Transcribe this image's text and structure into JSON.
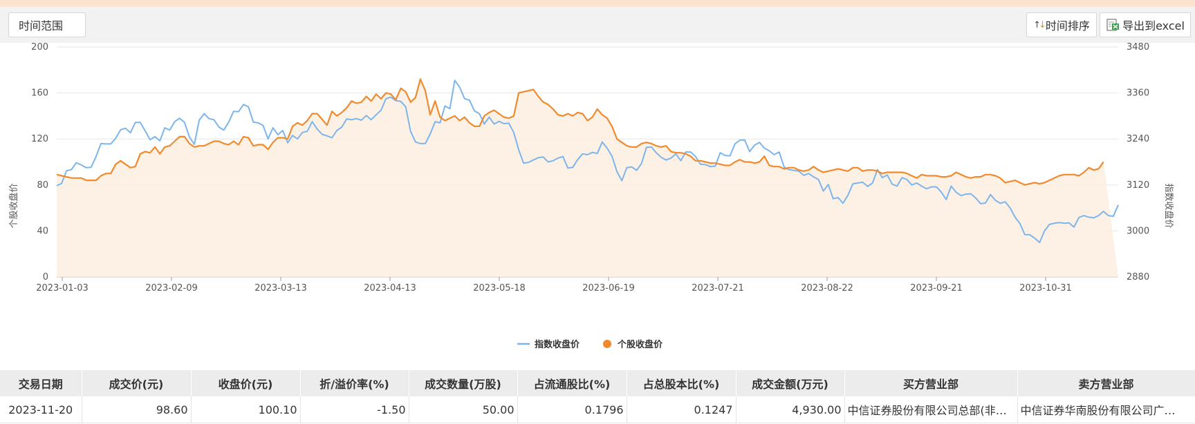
{
  "toolbar": {
    "time_range_label": "时间范围",
    "sort_label": "时间排序",
    "export_label": "导出到excel",
    "sort_icon": "sort-updown-icon",
    "export_icon": "excel-export-icon"
  },
  "chart_data": {
    "type": "line",
    "x_labels": [
      "2023-01-03",
      "2023-02-09",
      "2023-03-13",
      "2023-04-13",
      "2023-05-18",
      "2023-06-19",
      "2023-07-21",
      "2023-08-22",
      "2023-09-21",
      "2023-10-31"
    ],
    "ylabel_left": "个股收盘价",
    "ylabel_right": "指数收盘价",
    "ylim_left": [
      0,
      200
    ],
    "ylim_right": [
      2880,
      3480
    ],
    "yticks_left": [
      "0",
      "40",
      "80",
      "120",
      "160",
      "200"
    ],
    "yticks_right": [
      "2880",
      "3000",
      "3120",
      "3240",
      "3360",
      "3480"
    ],
    "grid": true,
    "legend_position": "bottom",
    "series": [
      {
        "name": "指数收盘价",
        "axis": "right",
        "color": "#7cb5ec",
        "values": [
          3118,
          3124,
          3157,
          3160,
          3178,
          3172,
          3165,
          3166,
          3194,
          3228,
          3227,
          3227,
          3242,
          3264,
          3268,
          3256,
          3283,
          3283,
          3261,
          3238,
          3246,
          3235,
          3269,
          3263,
          3285,
          3294,
          3283,
          3245,
          3226,
          3289,
          3306,
          3293,
          3290,
          3271,
          3263,
          3284,
          3312,
          3311,
          3330,
          3324,
          3284,
          3282,
          3275,
          3240,
          3269,
          3251,
          3262,
          3230,
          3249,
          3240,
          3257,
          3260,
          3285,
          3266,
          3252,
          3248,
          3243,
          3262,
          3271,
          3292,
          3290,
          3293,
          3289,
          3301,
          3290,
          3303,
          3315,
          3345,
          3349,
          3340,
          3338,
          3324,
          3260,
          3232,
          3228,
          3228,
          3253,
          3285,
          3282,
          3326,
          3319,
          3393,
          3375,
          3345,
          3341,
          3313,
          3306,
          3279,
          3297,
          3279,
          3286,
          3280,
          3281,
          3257,
          3212,
          3177,
          3179,
          3185,
          3191,
          3193,
          3180,
          3183,
          3190,
          3194,
          3164,
          3166,
          3186,
          3201,
          3199,
          3205,
          3202,
          3232,
          3216,
          3195,
          3155,
          3131,
          3165,
          3167,
          3158,
          3176,
          3218,
          3219,
          3204,
          3192,
          3185,
          3190,
          3201,
          3183,
          3206,
          3206,
          3194,
          3174,
          3173,
          3168,
          3169,
          3204,
          3197,
          3196,
          3227,
          3237,
          3237,
          3207,
          3224,
          3231,
          3216,
          3209,
          3199,
          3206,
          3167,
          3160,
          3158,
          3156,
          3145,
          3150,
          3141,
          3134,
          3104,
          3121,
          3084,
          3087,
          3072,
          3093,
          3123,
          3125,
          3127,
          3116,
          3125,
          3160,
          3139,
          3146,
          3122,
          3117,
          3139,
          3134,
          3120,
          3125,
          3117,
          3110,
          3115,
          3115,
          3101,
          3082,
          3117,
          3101,
          3092,
          3096,
          3097,
          3086,
          3071,
          3073,
          3095,
          3080,
          3072,
          3076,
          3060,
          3036,
          3019,
          2990,
          2990,
          2981,
          2970,
          3000,
          3017,
          3020,
          3022,
          3020,
          3021,
          3010,
          3035,
          3040,
          3036,
          3034,
          3040,
          3051,
          3040,
          3038,
          3068
        ]
      },
      {
        "name": "个股收盘价",
        "axis": "left",
        "color": "#f08a2c",
        "values": [
          89,
          88,
          87,
          86,
          86,
          86,
          84,
          84,
          84,
          88,
          90,
          90,
          98,
          101,
          98,
          95,
          96,
          107,
          109,
          108,
          113,
          107,
          113,
          114,
          118,
          122,
          122,
          116,
          113,
          114,
          114,
          116,
          118,
          118,
          116,
          115,
          118,
          115,
          122,
          121,
          114,
          115,
          115,
          111,
          117,
          121,
          121,
          120,
          131,
          134,
          132,
          136,
          142,
          142,
          137,
          132,
          144,
          140,
          143,
          147,
          153,
          151,
          152,
          157,
          153,
          159,
          155,
          160,
          159,
          154,
          164,
          161,
          152,
          156,
          172,
          162,
          141,
          153,
          139,
          136,
          138,
          140,
          136,
          139,
          134,
          131,
          131,
          140,
          143,
          145,
          142,
          139,
          138,
          140,
          160,
          161,
          162,
          163,
          157,
          152,
          150,
          146,
          141,
          140,
          142,
          140,
          143,
          142,
          136,
          139,
          146,
          141,
          138,
          131,
          120,
          117,
          114,
          113,
          113,
          116,
          117,
          116,
          114,
          113,
          114,
          109,
          108,
          108,
          107,
          105,
          101,
          101,
          100,
          99,
          99,
          98,
          97,
          97,
          100,
          102,
          100,
          100,
          99,
          100,
          105,
          97,
          96,
          96,
          94,
          95,
          95,
          93,
          92,
          93,
          96,
          93,
          91,
          92,
          93,
          94,
          93,
          92,
          95,
          95,
          92,
          93,
          93,
          92,
          90,
          91,
          91,
          91,
          91,
          90,
          88,
          86,
          89,
          88,
          88,
          88,
          87,
          87,
          88,
          91,
          89,
          87,
          86,
          87,
          87,
          89,
          89,
          88,
          86,
          82,
          83,
          84,
          82,
          80,
          81,
          82,
          81,
          82,
          84,
          86,
          88,
          89,
          89,
          89,
          88,
          91,
          95,
          93,
          94,
          100
        ]
      }
    ]
  },
  "table": {
    "headers": [
      "交易日期",
      "成交价(元)",
      "收盘价(元)",
      "折/溢价率(%)",
      "成交数量(万股)",
      "占流通股比(%)",
      "占总股本比(%)",
      "成交金额(万元)",
      "买方营业部",
      "卖方营业部"
    ],
    "rows": [
      [
        "2023-11-20",
        "98.60",
        "100.10",
        "-1.50",
        "50.00",
        "0.1796",
        "0.1247",
        "4,930.00",
        "中信证券股份有限公司总部(非…",
        "中信证券华南股份有限公司广…"
      ]
    ]
  }
}
